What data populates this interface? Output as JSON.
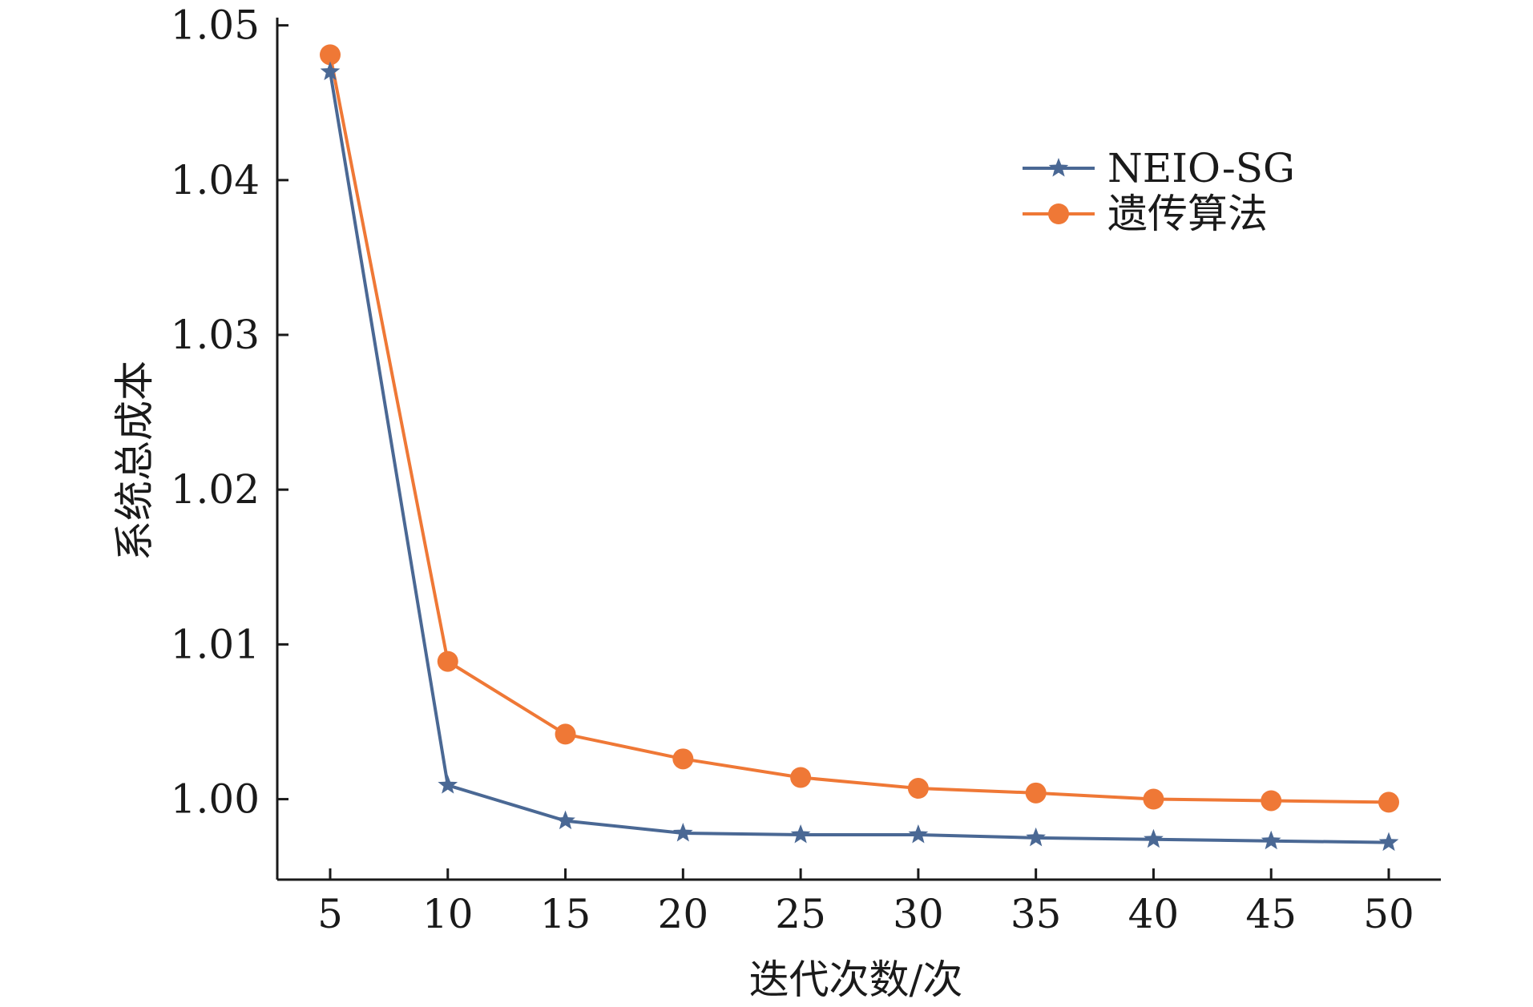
{
  "chart_data": {
    "type": "line",
    "title": "",
    "xlabel": "迭代次数/次",
    "ylabel": "系统总成本",
    "x": [
      5,
      10,
      15,
      20,
      25,
      30,
      35,
      40,
      45,
      50
    ],
    "xticks": [
      "5",
      "10",
      "15",
      "20",
      "25",
      "30",
      "35",
      "40",
      "45",
      "50"
    ],
    "yticks": [
      "1.00",
      "1.01",
      "1.02",
      "1.03",
      "1.04",
      "1.05"
    ],
    "ylim": [
      0.9948,
      1.0505
    ],
    "grid": false,
    "legend_position": "top-right",
    "series": [
      {
        "name": "NEIO-SG",
        "marker": "star",
        "color": "#4a6894",
        "values": [
          1.047,
          1.0009,
          0.9986,
          0.9978,
          0.9977,
          0.9977,
          0.9975,
          0.9974,
          0.9973,
          0.9972
        ]
      },
      {
        "name": "遗传算法",
        "marker": "circle",
        "color": "#ef7836",
        "values": [
          1.0481,
          1.0089,
          1.0042,
          1.0026,
          1.0014,
          1.0007,
          1.0004,
          1.0,
          0.9999,
          0.9998
        ]
      }
    ]
  }
}
